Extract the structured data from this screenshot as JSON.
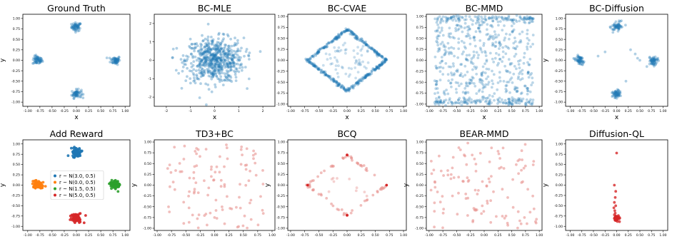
{
  "colors": {
    "blue": "#1f77b4",
    "orange": "#ff7f0e",
    "green": "#2ca02c",
    "red": "#d62728",
    "light_red": "#e8928f"
  },
  "chart_data": [
    {
      "type": "scatter",
      "title": "Ground Truth",
      "xlabel": "x",
      "ylabel": "y",
      "xlim": [
        -1.1,
        1.1
      ],
      "ylim": [
        -1.1,
        1.1
      ],
      "xticks": [
        -1.0,
        -0.75,
        -0.5,
        -0.25,
        0.0,
        0.25,
        0.5,
        0.75,
        1.0
      ],
      "yticks": [
        -1.0,
        -0.75,
        -0.5,
        -0.25,
        0.0,
        0.25,
        0.5,
        0.75,
        1.0
      ],
      "tick_labels_x": [
        "-1.00",
        "-0.75",
        "-0.50",
        "-0.25",
        "0.00",
        "0.25",
        "0.50",
        "0.75",
        "1.00"
      ],
      "tick_labels_y": [
        "-1.00",
        "-0.75",
        "-0.50",
        "-0.25",
        "0.00",
        "0.25",
        "0.50",
        "0.75",
        "1.00"
      ],
      "color": "blue",
      "distribution": {
        "kind": "clusters",
        "centers": [
          [
            0.0,
            0.8
          ],
          [
            -0.8,
            0.0
          ],
          [
            0.8,
            0.0
          ],
          [
            0.0,
            -0.8
          ]
        ],
        "spread": 0.05,
        "points_per_cluster": 60
      },
      "marker_alpha": 0.35
    },
    {
      "type": "scatter",
      "title": "BC-MLE",
      "xlabel": "x",
      "ylabel": "",
      "xlim": [
        -2.5,
        2.5
      ],
      "ylim": [
        -2.5,
        2.5
      ],
      "xticks": [
        -2,
        -1,
        0,
        1,
        2
      ],
      "yticks": [
        -2,
        -1,
        0,
        1,
        2
      ],
      "tick_labels_x": [
        "-2",
        "-1",
        "0",
        "1",
        "2"
      ],
      "tick_labels_y": [
        "-2",
        "-1",
        "0",
        "1",
        "2"
      ],
      "color": "blue",
      "distribution": {
        "kind": "gaussian",
        "center": [
          0.0,
          0.0
        ],
        "spread": 0.6,
        "points": 600
      },
      "marker_alpha": 0.35
    },
    {
      "type": "scatter",
      "title": "BC-CVAE",
      "xlabel": "x",
      "ylabel": "",
      "xlim": [
        -1.05,
        1.05
      ],
      "ylim": [
        -1.05,
        1.05
      ],
      "xticks": [
        -1.0,
        -0.75,
        -0.5,
        -0.25,
        0.0,
        0.25,
        0.5,
        0.75,
        1.0
      ],
      "yticks": [
        -1.0,
        -0.75,
        -0.5,
        -0.25,
        0.0,
        0.25,
        0.5,
        0.75,
        1.0
      ],
      "tick_labels_x": [
        "-1.00",
        "-0.75",
        "-0.50",
        "-0.25",
        "0.00",
        "0.25",
        "0.50",
        "0.75",
        "1.00"
      ],
      "tick_labels_y": [
        "-1.00",
        "-0.75",
        "-0.50",
        "-0.25",
        "0.00",
        "0.25",
        "0.50",
        "0.75",
        "1.00"
      ],
      "color": "blue",
      "distribution": {
        "kind": "diamond",
        "radius": 0.7,
        "points": 400,
        "interior": 60
      },
      "marker_alpha": 0.35
    },
    {
      "type": "scatter",
      "title": "BC-MMD",
      "xlabel": "x",
      "ylabel": "",
      "xlim": [
        -1.05,
        1.05
      ],
      "ylim": [
        -1.05,
        1.05
      ],
      "xticks": [
        -1.0,
        -0.75,
        -0.5,
        -0.25,
        0.0,
        0.25,
        0.5,
        0.75,
        1.0
      ],
      "yticks": [
        -1.0,
        -0.75,
        -0.5,
        -0.25,
        0.0,
        0.25,
        0.5,
        0.75,
        1.0
      ],
      "tick_labels_x": [
        "-1.00",
        "-0.75",
        "-0.50",
        "-0.25",
        "0.00",
        "0.25",
        "0.50",
        "0.75",
        "1.00"
      ],
      "tick_labels_y": [
        "-1.00",
        "-0.75",
        "-0.50",
        "-0.25",
        "0.00",
        "0.25",
        "0.50",
        "0.75",
        "1.00"
      ],
      "color": "blue",
      "distribution": {
        "kind": "uniform",
        "xrange": [
          -0.9,
          0.9
        ],
        "yrange": [
          -1.0,
          1.0
        ],
        "points": 700,
        "edge_dense_y": [
          0.95,
          -0.95
        ]
      },
      "marker_alpha": 0.3
    },
    {
      "type": "scatter",
      "title": "BC-Diffusion",
      "xlabel": "x",
      "ylabel": "y",
      "xlim": [
        -1.1,
        1.1
      ],
      "ylim": [
        -1.1,
        1.1
      ],
      "xticks": [
        -1.0,
        -0.75,
        -0.5,
        -0.25,
        0.0,
        0.25,
        0.5,
        0.75,
        1.0
      ],
      "yticks": [
        -1.0,
        -0.75,
        -0.5,
        -0.25,
        0.0,
        0.25,
        0.5,
        0.75,
        1.0
      ],
      "tick_labels_x": [
        "-1.00",
        "-0.75",
        "-0.50",
        "-0.25",
        "0.00",
        "0.25",
        "0.50",
        "0.75",
        "1.00"
      ],
      "tick_labels_y": [
        "-1.00",
        "-0.75",
        "-0.50",
        "-0.25",
        "0.00",
        "0.25",
        "0.50",
        "0.75",
        "1.00"
      ],
      "color": "blue",
      "distribution": {
        "kind": "clusters",
        "centers": [
          [
            0.0,
            0.8
          ],
          [
            -0.8,
            0.0
          ],
          [
            0.8,
            0.0
          ],
          [
            0.0,
            -0.8
          ]
        ],
        "spread": 0.05,
        "points_per_cluster": 55,
        "stragglers": [
          [
            0.3,
            0.25
          ],
          [
            0.4,
            0.15
          ],
          [
            0.45,
            0.05
          ],
          [
            0.5,
            0.0
          ],
          [
            -0.4,
            0.1
          ],
          [
            -0.25,
            0.2
          ],
          [
            0.65,
            -0.15
          ],
          [
            0.2,
            -0.5
          ]
        ]
      },
      "marker_alpha": 0.35
    },
    {
      "type": "scatter",
      "title": "Add Reward",
      "xlabel": "",
      "ylabel": "y",
      "xlim": [
        -1.1,
        1.1
      ],
      "ylim": [
        -1.1,
        1.1
      ],
      "xticks": [
        -1.0,
        -0.75,
        -0.5,
        -0.25,
        0.0,
        0.25,
        0.5,
        0.75,
        1.0
      ],
      "yticks": [
        -1.0,
        -0.75,
        -0.5,
        -0.25,
        0.0,
        0.25,
        0.5,
        0.75,
        1.0
      ],
      "tick_labels_x": [
        "-1.00",
        "-0.75",
        "-0.50",
        "-0.25",
        "0.00",
        "0.25",
        "0.50",
        "0.75",
        "1.00"
      ],
      "tick_labels_y": [
        "-1.00",
        "-0.75",
        "-0.50",
        "-0.25",
        "0.00",
        "0.25",
        "0.50",
        "0.75",
        "1.00"
      ],
      "series": [
        {
          "name": "r ~ N(3.0, 0.5)",
          "color": "blue",
          "center": [
            0.0,
            0.8
          ]
        },
        {
          "name": "r ~ N(0.0, 0.5)",
          "color": "orange",
          "center": [
            -0.8,
            0.0
          ]
        },
        {
          "name": "r ~ N(1.5, 0.5)",
          "color": "green",
          "center": [
            0.8,
            0.0
          ]
        },
        {
          "name": "r ~ N(5.0, 0.5)",
          "color": "red",
          "center": [
            0.0,
            -0.8
          ]
        }
      ],
      "distribution": {
        "kind": "clusters",
        "spread": 0.05,
        "points_per_cluster": 80
      },
      "legend": "center",
      "marker_alpha": 0.9
    },
    {
      "type": "scatter",
      "title": "TD3+BC",
      "xlabel": "",
      "ylabel": "y",
      "xlim": [
        -1.05,
        1.05
      ],
      "ylim": [
        -1.05,
        1.05
      ],
      "xticks": [
        -1.0,
        -0.75,
        -0.5,
        -0.25,
        0.0,
        0.25,
        0.5,
        0.75,
        1.0
      ],
      "yticks": [
        -1.0,
        -0.75,
        -0.5,
        -0.25,
        0.0,
        0.25,
        0.5,
        0.75,
        1.0
      ],
      "tick_labels_x": [
        "-1.00",
        "-0.75",
        "-0.50",
        "-0.25",
        "0.00",
        "0.25",
        "0.50",
        "0.75",
        "1.00"
      ],
      "tick_labels_y": [
        "-1.00",
        "-0.75",
        "-0.50",
        "-0.25",
        "0.00",
        "0.25",
        "0.50",
        "0.75",
        "1.00"
      ],
      "color": "light_red",
      "distribution": {
        "kind": "uniform",
        "xrange": [
          -0.85,
          0.85
        ],
        "yrange": [
          -1.0,
          0.95
        ],
        "points": 110
      },
      "marker_alpha": 0.6
    },
    {
      "type": "scatter",
      "title": "BCQ",
      "xlabel": "",
      "ylabel": "y",
      "xlim": [
        -1.05,
        1.05
      ],
      "ylim": [
        -1.05,
        1.05
      ],
      "xticks": [
        -1.0,
        -0.75,
        -0.5,
        -0.25,
        0.0,
        0.25,
        0.5,
        0.75,
        1.0
      ],
      "yticks": [
        -1.0,
        -0.75,
        -0.5,
        -0.25,
        0.0,
        0.25,
        0.5,
        0.75,
        1.0
      ],
      "tick_labels_x": [
        "-1.00",
        "-0.75",
        "-0.50",
        "-0.25",
        "0.00",
        "0.25",
        "0.50",
        "0.75",
        "1.00"
      ],
      "tick_labels_y": [
        "-1.00",
        "-0.75",
        "-0.50",
        "-0.25",
        "0.00",
        "0.25",
        "0.50",
        "0.75",
        "1.00"
      ],
      "color": "light_red",
      "distribution": {
        "kind": "diamond",
        "radius": 0.7,
        "points": 70,
        "interior": 10
      },
      "highlight_points": [
        [
          -0.7,
          0.0
        ],
        [
          0.7,
          0.0
        ],
        [
          0.0,
          0.7
        ],
        [
          0.0,
          -0.7
        ]
      ],
      "highlight_color": "red",
      "marker_alpha": 0.6
    },
    {
      "type": "scatter",
      "title": "BEAR-MMD",
      "xlabel": "",
      "ylabel": "y",
      "xlim": [
        -1.05,
        1.05
      ],
      "ylim": [
        -1.05,
        1.05
      ],
      "xticks": [
        -1.0,
        -0.75,
        -0.5,
        -0.25,
        0.0,
        0.25,
        0.5,
        0.75,
        1.0
      ],
      "yticks": [
        -1.0,
        -0.75,
        -0.5,
        -0.25,
        0.0,
        0.25,
        0.5,
        0.75,
        1.0
      ],
      "tick_labels_x": [
        "-1.00",
        "-0.75",
        "-0.50",
        "-0.25",
        "0.00",
        "0.25",
        "0.50",
        "0.75",
        "1.00"
      ],
      "tick_labels_y": [
        "-1.00",
        "-0.75",
        "-0.50",
        "-0.25",
        "0.00",
        "0.25",
        "0.50",
        "0.75",
        "1.00"
      ],
      "color": "light_red",
      "distribution": {
        "kind": "uniform",
        "xrange": [
          -1.0,
          1.0
        ],
        "yrange": [
          -1.0,
          1.0
        ],
        "points": 120
      },
      "marker_alpha": 0.6
    },
    {
      "type": "scatter",
      "title": "Diffusion-QL",
      "xlabel": "",
      "ylabel": "y",
      "xlim": [
        -1.1,
        1.1
      ],
      "ylim": [
        -1.1,
        1.1
      ],
      "xticks": [
        -1.0,
        -0.75,
        -0.5,
        -0.25,
        0.0,
        0.25,
        0.5,
        0.75,
        1.0
      ],
      "yticks": [
        -1.0,
        -0.75,
        -0.5,
        -0.25,
        0.0,
        0.25,
        0.5,
        0.75,
        1.0
      ],
      "tick_labels_x": [
        "-1.00",
        "-0.75",
        "-0.50",
        "-0.25",
        "0.00",
        "0.25",
        "0.50",
        "0.75",
        "1.00"
      ],
      "tick_labels_y": [
        "-1.00",
        "-0.75",
        "-0.50",
        "-0.25",
        "0.00",
        "0.25",
        "0.50",
        "0.75",
        "1.00"
      ],
      "color": "red",
      "distribution": {
        "kind": "clusters",
        "centers": [
          [
            0.0,
            -0.82
          ]
        ],
        "spread": 0.03,
        "points_per_cluster": 40,
        "stragglers": [
          [
            0.0,
            0.78
          ],
          [
            -0.05,
            0.0
          ],
          [
            -0.02,
            -0.15
          ],
          [
            -0.03,
            -0.3
          ],
          [
            -0.05,
            -0.42
          ],
          [
            -0.02,
            -0.5
          ],
          [
            -0.06,
            -0.55
          ],
          [
            -0.04,
            -0.62
          ],
          [
            -0.03,
            -0.68
          ],
          [
            -0.05,
            -0.72
          ]
        ]
      },
      "marker_alpha": 0.8
    }
  ]
}
